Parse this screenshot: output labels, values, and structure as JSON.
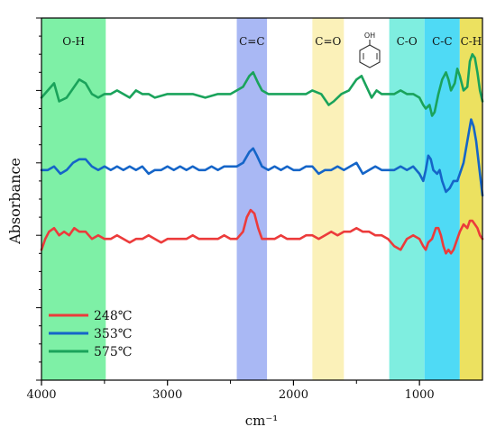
{
  "chart_data": {
    "type": "line",
    "x_reversed": true,
    "xlim": [
      4000,
      500
    ],
    "xticks": [
      4000,
      3000,
      2000,
      1000
    ],
    "tick_labels": [
      "4000",
      "3000",
      "2000",
      "1000"
    ],
    "xlabel": "cm⁻¹",
    "ylabel": "Absorbance",
    "y_tick_labels": false,
    "grid": false,
    "legend_position": "bottom-left",
    "bands": [
      {
        "label": "O-H",
        "from": 4000,
        "to": 3490,
        "color": "#7ef0a6"
      },
      {
        "label": "C=C",
        "from": 2450,
        "to": 2210,
        "color": "#a9b8f4"
      },
      {
        "label": "C=O",
        "from": 1850,
        "to": 1600,
        "color": "#fbf1b9"
      },
      {
        "label": "C-O",
        "from": 1240,
        "to": 960,
        "color": "#7feee0"
      },
      {
        "label": "C-C",
        "from": 960,
        "to": 680,
        "color": "#4fdaf5"
      },
      {
        "label": "C-H",
        "from": 680,
        "to": 500,
        "color": "#ece160"
      }
    ],
    "phenol_icon": {
      "label": "OH"
    },
    "series": [
      {
        "name": "575℃",
        "color": "#1aa35b",
        "points": [
          [
            4000,
            0.78
          ],
          [
            3950,
            0.8
          ],
          [
            3900,
            0.82
          ],
          [
            3860,
            0.77
          ],
          [
            3800,
            0.78
          ],
          [
            3760,
            0.8
          ],
          [
            3700,
            0.83
          ],
          [
            3650,
            0.82
          ],
          [
            3600,
            0.79
          ],
          [
            3550,
            0.78
          ],
          [
            3500,
            0.79
          ],
          [
            3450,
            0.79
          ],
          [
            3400,
            0.8
          ],
          [
            3350,
            0.79
          ],
          [
            3300,
            0.78
          ],
          [
            3250,
            0.8
          ],
          [
            3200,
            0.79
          ],
          [
            3150,
            0.79
          ],
          [
            3100,
            0.78
          ],
          [
            3000,
            0.79
          ],
          [
            2900,
            0.79
          ],
          [
            2800,
            0.79
          ],
          [
            2700,
            0.78
          ],
          [
            2600,
            0.79
          ],
          [
            2500,
            0.79
          ],
          [
            2450,
            0.8
          ],
          [
            2400,
            0.81
          ],
          [
            2350,
            0.84
          ],
          [
            2320,
            0.85
          ],
          [
            2280,
            0.82
          ],
          [
            2250,
            0.8
          ],
          [
            2200,
            0.79
          ],
          [
            2100,
            0.79
          ],
          [
            2000,
            0.79
          ],
          [
            1900,
            0.79
          ],
          [
            1850,
            0.8
          ],
          [
            1780,
            0.79
          ],
          [
            1720,
            0.76
          ],
          [
            1680,
            0.77
          ],
          [
            1620,
            0.79
          ],
          [
            1560,
            0.8
          ],
          [
            1500,
            0.83
          ],
          [
            1460,
            0.84
          ],
          [
            1420,
            0.81
          ],
          [
            1380,
            0.78
          ],
          [
            1340,
            0.8
          ],
          [
            1300,
            0.79
          ],
          [
            1250,
            0.79
          ],
          [
            1200,
            0.79
          ],
          [
            1150,
            0.8
          ],
          [
            1100,
            0.79
          ],
          [
            1050,
            0.79
          ],
          [
            1000,
            0.78
          ],
          [
            970,
            0.76
          ],
          [
            950,
            0.75
          ],
          [
            920,
            0.76
          ],
          [
            900,
            0.73
          ],
          [
            880,
            0.74
          ],
          [
            850,
            0.79
          ],
          [
            820,
            0.83
          ],
          [
            790,
            0.85
          ],
          [
            770,
            0.83
          ],
          [
            750,
            0.8
          ],
          [
            720,
            0.82
          ],
          [
            700,
            0.86
          ],
          [
            680,
            0.84
          ],
          [
            650,
            0.8
          ],
          [
            620,
            0.81
          ],
          [
            600,
            0.88
          ],
          [
            580,
            0.9
          ],
          [
            560,
            0.89
          ],
          [
            540,
            0.85
          ],
          [
            520,
            0.8
          ],
          [
            500,
            0.77
          ]
        ]
      },
      {
        "name": "353℃",
        "color": "#1565c8",
        "points": [
          [
            4000,
            0.58
          ],
          [
            3950,
            0.58
          ],
          [
            3900,
            0.59
          ],
          [
            3850,
            0.57
          ],
          [
            3800,
            0.58
          ],
          [
            3750,
            0.6
          ],
          [
            3700,
            0.61
          ],
          [
            3650,
            0.61
          ],
          [
            3600,
            0.59
          ],
          [
            3550,
            0.58
          ],
          [
            3500,
            0.59
          ],
          [
            3450,
            0.58
          ],
          [
            3400,
            0.59
          ],
          [
            3350,
            0.58
          ],
          [
            3300,
            0.59
          ],
          [
            3250,
            0.58
          ],
          [
            3200,
            0.59
          ],
          [
            3150,
            0.57
          ],
          [
            3100,
            0.58
          ],
          [
            3050,
            0.58
          ],
          [
            3000,
            0.59
          ],
          [
            2950,
            0.58
          ],
          [
            2900,
            0.59
          ],
          [
            2850,
            0.58
          ],
          [
            2800,
            0.59
          ],
          [
            2750,
            0.58
          ],
          [
            2700,
            0.58
          ],
          [
            2650,
            0.59
          ],
          [
            2600,
            0.58
          ],
          [
            2550,
            0.59
          ],
          [
            2500,
            0.59
          ],
          [
            2450,
            0.59
          ],
          [
            2400,
            0.6
          ],
          [
            2350,
            0.63
          ],
          [
            2320,
            0.64
          ],
          [
            2290,
            0.62
          ],
          [
            2250,
            0.59
          ],
          [
            2200,
            0.58
          ],
          [
            2150,
            0.59
          ],
          [
            2100,
            0.58
          ],
          [
            2050,
            0.59
          ],
          [
            2000,
            0.58
          ],
          [
            1950,
            0.58
          ],
          [
            1900,
            0.59
          ],
          [
            1850,
            0.59
          ],
          [
            1800,
            0.57
          ],
          [
            1750,
            0.58
          ],
          [
            1700,
            0.58
          ],
          [
            1650,
            0.59
          ],
          [
            1600,
            0.58
          ],
          [
            1550,
            0.59
          ],
          [
            1500,
            0.6
          ],
          [
            1450,
            0.57
          ],
          [
            1400,
            0.58
          ],
          [
            1350,
            0.59
          ],
          [
            1300,
            0.58
          ],
          [
            1250,
            0.58
          ],
          [
            1200,
            0.58
          ],
          [
            1150,
            0.59
          ],
          [
            1100,
            0.58
          ],
          [
            1050,
            0.59
          ],
          [
            1000,
            0.57
          ],
          [
            970,
            0.55
          ],
          [
            950,
            0.58
          ],
          [
            930,
            0.62
          ],
          [
            910,
            0.61
          ],
          [
            890,
            0.58
          ],
          [
            860,
            0.57
          ],
          [
            840,
            0.58
          ],
          [
            820,
            0.55
          ],
          [
            790,
            0.52
          ],
          [
            760,
            0.53
          ],
          [
            730,
            0.55
          ],
          [
            700,
            0.55
          ],
          [
            680,
            0.57
          ],
          [
            650,
            0.6
          ],
          [
            620,
            0.66
          ],
          [
            600,
            0.7
          ],
          [
            590,
            0.72
          ],
          [
            570,
            0.7
          ],
          [
            550,
            0.66
          ],
          [
            530,
            0.6
          ],
          [
            510,
            0.54
          ],
          [
            500,
            0.51
          ]
        ]
      },
      {
        "name": "248℃",
        "color": "#ec3b3b",
        "points": [
          [
            4000,
            0.36
          ],
          [
            3970,
            0.39
          ],
          [
            3940,
            0.41
          ],
          [
            3900,
            0.42
          ],
          [
            3860,
            0.4
          ],
          [
            3820,
            0.41
          ],
          [
            3780,
            0.4
          ],
          [
            3740,
            0.42
          ],
          [
            3700,
            0.41
          ],
          [
            3650,
            0.41
          ],
          [
            3600,
            0.39
          ],
          [
            3550,
            0.4
          ],
          [
            3500,
            0.39
          ],
          [
            3450,
            0.39
          ],
          [
            3400,
            0.4
          ],
          [
            3350,
            0.39
          ],
          [
            3300,
            0.38
          ],
          [
            3250,
            0.39
          ],
          [
            3200,
            0.39
          ],
          [
            3150,
            0.4
          ],
          [
            3100,
            0.39
          ],
          [
            3050,
            0.38
          ],
          [
            3000,
            0.39
          ],
          [
            2950,
            0.39
          ],
          [
            2900,
            0.39
          ],
          [
            2850,
            0.39
          ],
          [
            2800,
            0.4
          ],
          [
            2750,
            0.39
          ],
          [
            2700,
            0.39
          ],
          [
            2650,
            0.39
          ],
          [
            2600,
            0.39
          ],
          [
            2550,
            0.4
          ],
          [
            2500,
            0.39
          ],
          [
            2450,
            0.39
          ],
          [
            2400,
            0.41
          ],
          [
            2370,
            0.45
          ],
          [
            2340,
            0.47
          ],
          [
            2310,
            0.46
          ],
          [
            2280,
            0.42
          ],
          [
            2250,
            0.39
          ],
          [
            2200,
            0.39
          ],
          [
            2150,
            0.39
          ],
          [
            2100,
            0.4
          ],
          [
            2050,
            0.39
          ],
          [
            2000,
            0.39
          ],
          [
            1950,
            0.39
          ],
          [
            1900,
            0.4
          ],
          [
            1850,
            0.4
          ],
          [
            1800,
            0.39
          ],
          [
            1750,
            0.4
          ],
          [
            1700,
            0.41
          ],
          [
            1650,
            0.4
          ],
          [
            1600,
            0.41
          ],
          [
            1550,
            0.41
          ],
          [
            1500,
            0.42
          ],
          [
            1450,
            0.41
          ],
          [
            1400,
            0.41
          ],
          [
            1350,
            0.4
          ],
          [
            1300,
            0.4
          ],
          [
            1250,
            0.39
          ],
          [
            1200,
            0.37
          ],
          [
            1150,
            0.36
          ],
          [
            1100,
            0.39
          ],
          [
            1050,
            0.4
          ],
          [
            1000,
            0.39
          ],
          [
            970,
            0.37
          ],
          [
            950,
            0.36
          ],
          [
            930,
            0.38
          ],
          [
            900,
            0.39
          ],
          [
            870,
            0.42
          ],
          [
            850,
            0.42
          ],
          [
            830,
            0.4
          ],
          [
            810,
            0.37
          ],
          [
            790,
            0.35
          ],
          [
            770,
            0.36
          ],
          [
            750,
            0.35
          ],
          [
            730,
            0.36
          ],
          [
            700,
            0.39
          ],
          [
            680,
            0.41
          ],
          [
            650,
            0.43
          ],
          [
            620,
            0.42
          ],
          [
            600,
            0.44
          ],
          [
            580,
            0.44
          ],
          [
            560,
            0.43
          ],
          [
            540,
            0.42
          ],
          [
            520,
            0.4
          ],
          [
            500,
            0.39
          ]
        ]
      }
    ]
  }
}
